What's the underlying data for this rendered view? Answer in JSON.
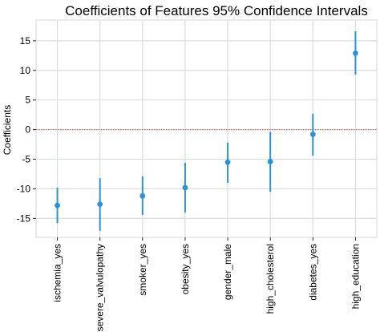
{
  "chart_data": {
    "type": "scatter",
    "title": "Coefficients of Features 95% Confidence Intervals",
    "xlabel": "",
    "ylabel": "Coefficients",
    "categories": [
      "ischemia_yes",
      "severe_valvulopathy",
      "smoker_yes",
      "obesity_yes",
      "gender_male",
      "high_cholesterol",
      "diabetes_yes",
      "high_education"
    ],
    "values": [
      -12.8,
      -12.6,
      -11.2,
      -9.8,
      -5.5,
      -5.4,
      -0.8,
      12.9
    ],
    "ci_lower": [
      -15.8,
      -17.1,
      -14.4,
      -14.0,
      -9.0,
      -10.5,
      -4.4,
      9.3
    ],
    "ci_upper": [
      -9.8,
      -8.2,
      -7.9,
      -5.6,
      -2.2,
      -0.4,
      2.7,
      16.6
    ],
    "reference_line": 0,
    "yticks": [
      -15,
      -10,
      -5,
      0,
      5,
      10,
      15
    ],
    "ylim": [
      -18.2,
      18.5
    ],
    "grid": true,
    "colors": {
      "point": "#2a93d5",
      "reference": "#d9534f",
      "grid": "#d9dee2"
    }
  }
}
